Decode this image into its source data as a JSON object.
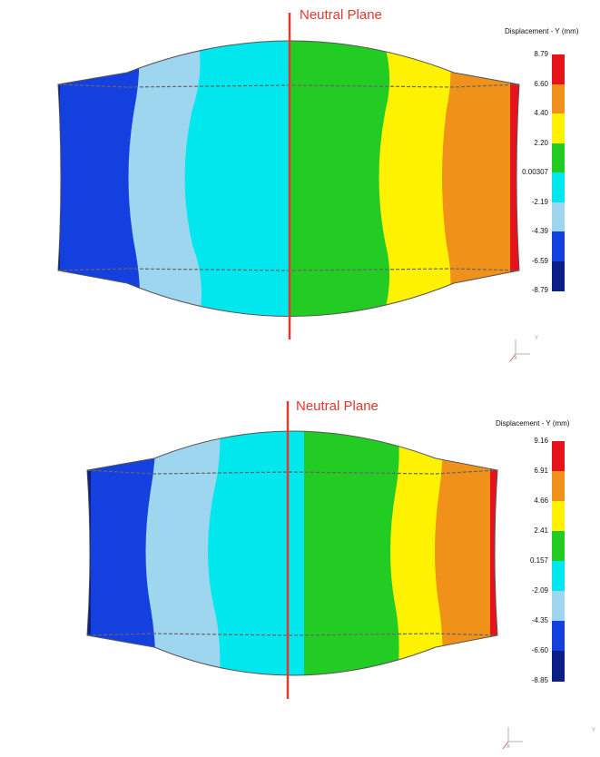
{
  "panels": [
    {
      "neutral_plane_label": "Neutral Plane",
      "legend": {
        "title": "Displacement - Y (mm)",
        "ticks": [
          "8.79",
          "6.60",
          "4.40",
          "2.20",
          "0.00307",
          "-2.19",
          "-4.39",
          "-6.59",
          "-8.79"
        ],
        "colors": [
          "#e8121a",
          "#f0921a",
          "#fff200",
          "#22cc22",
          "#00e8ee",
          "#9ed6f0",
          "#1540e0",
          "#0a1f88"
        ]
      },
      "triad": {
        "axis_y": "Y",
        "axis_x": "X"
      }
    },
    {
      "neutral_plane_label": "Neutral Plane",
      "legend": {
        "title": "Displacement - Y (mm)",
        "ticks": [
          "9.16",
          "6.91",
          "4.66",
          "2.41",
          "0.157",
          "-2.09",
          "-4.35",
          "-6.60",
          "-8.85"
        ],
        "colors": [
          "#e8121a",
          "#f0921a",
          "#fff200",
          "#22cc22",
          "#00e8ee",
          "#9ed6f0",
          "#1540e0",
          "#0a1f88"
        ]
      },
      "triad": {
        "axis_y": "Y",
        "axis_x": "X"
      }
    }
  ]
}
